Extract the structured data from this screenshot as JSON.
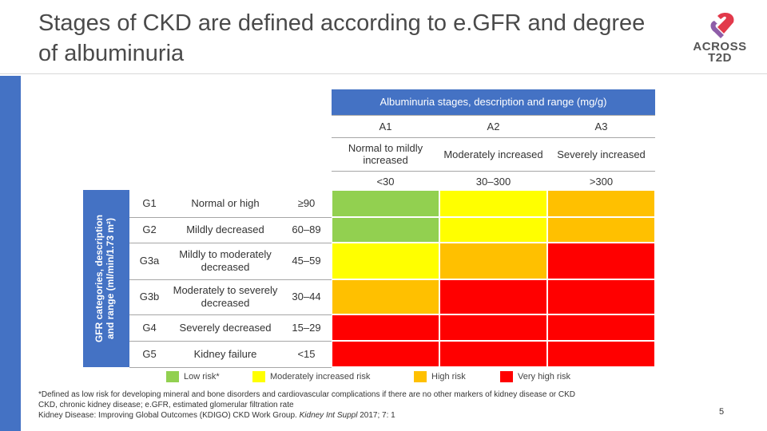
{
  "title": "Stages of CKD are defined according to e.GFR and degree of albuminuria",
  "logo": {
    "line1": "ACROSS",
    "line2": "T2D",
    "color_primary": "#e2394b",
    "color_secondary": "#8e5da8"
  },
  "albuminuria": {
    "header": "Albuminuria stages, description and range (mg/g)",
    "stages": [
      {
        "code": "A1",
        "description": "Normal to mildly increased",
        "range": "<30"
      },
      {
        "code": "A2",
        "description": "Moderately increased",
        "range": "30–300"
      },
      {
        "code": "A3",
        "description": "Severely increased",
        "range": ">300"
      }
    ]
  },
  "gfr": {
    "side_label_line1": "GFR categories, description",
    "side_label_line2": "and range (ml/min/1.73 m²)",
    "rows": [
      {
        "code": "G1",
        "description": "Normal or high",
        "range": "≥90",
        "risk": [
          "low",
          "moderate",
          "high"
        ]
      },
      {
        "code": "G2",
        "description": "Mildly decreased",
        "range": "60–89",
        "risk": [
          "low",
          "moderate",
          "high"
        ]
      },
      {
        "code": "G3a",
        "description": "Mildly to moderately decreased",
        "range": "45–59",
        "risk": [
          "moderate",
          "high",
          "very_high"
        ]
      },
      {
        "code": "G3b",
        "description": "Moderately to severely decreased",
        "range": "30–44",
        "risk": [
          "high",
          "very_high",
          "very_high"
        ]
      },
      {
        "code": "G4",
        "description": "Severely decreased",
        "range": "15–29",
        "risk": [
          "very_high",
          "very_high",
          "very_high"
        ]
      },
      {
        "code": "G5",
        "description": "Kidney failure",
        "range": "<15",
        "risk": [
          "very_high",
          "very_high",
          "very_high"
        ]
      }
    ]
  },
  "legend": [
    {
      "key": "low",
      "label": "Low risk*",
      "color": "#92d050"
    },
    {
      "key": "moderate",
      "label": "Moderately increased risk",
      "color": "#ffff00"
    },
    {
      "key": "high",
      "label": "High risk",
      "color": "#ffc000"
    },
    {
      "key": "very_high",
      "label": "Very high risk",
      "color": "#ff0000"
    }
  ],
  "footnote": {
    "line1": "*Defined as low risk for developing mineral and bone disorders and cardiovascular complications if there are no other markers of kidney disease or CKD",
    "line2": "CKD, chronic kidney disease; e.GFR, estimated glomerular filtration rate",
    "line3_prefix": "Kidney Disease: Improving Global Outcomes (KDIGO) CKD Work Group.",
    "line3_journal": "Kidney Int Suppl",
    "line3_suffix": "2017; 7: 1"
  },
  "page_number": "5",
  "colors": {
    "blue": "#4472c4"
  }
}
